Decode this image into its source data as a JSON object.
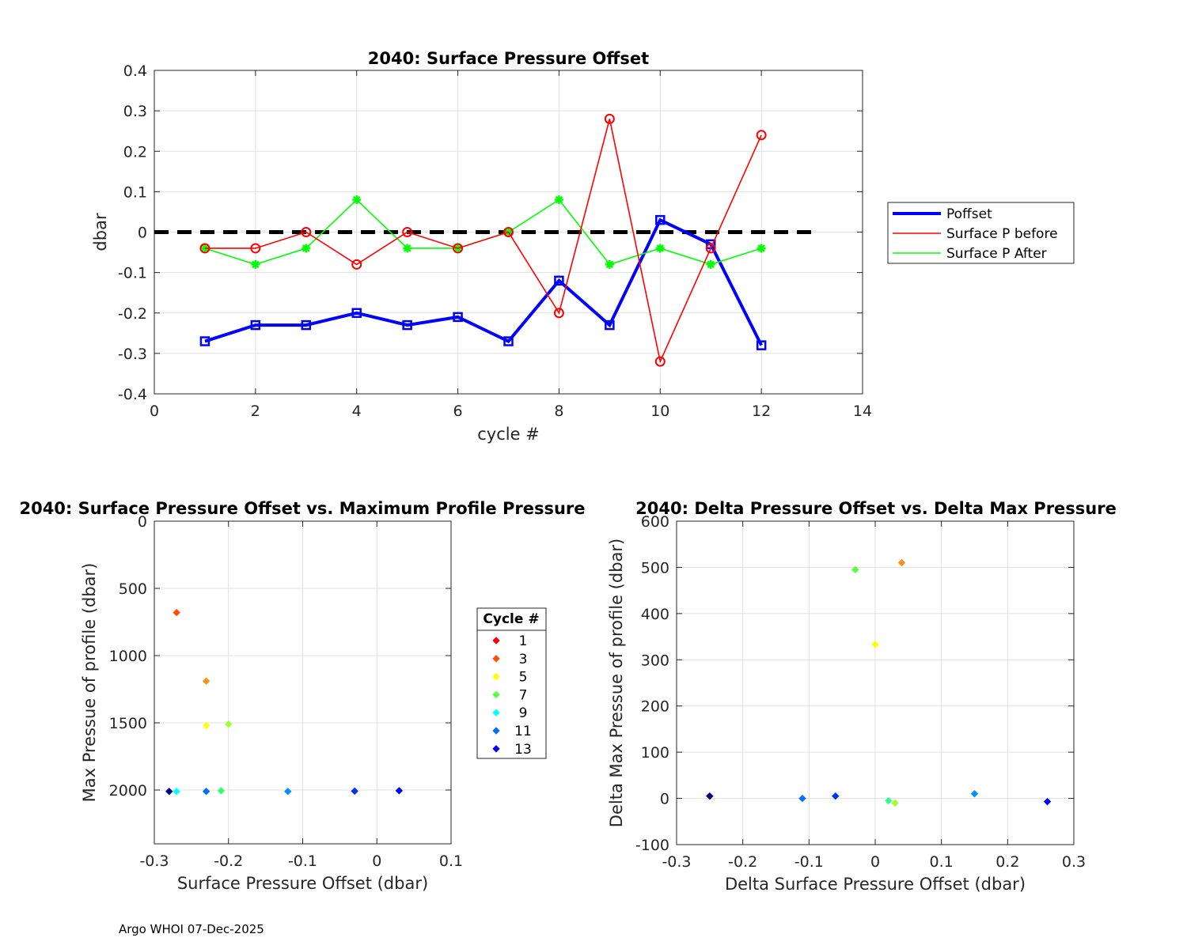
{
  "footer": "Argo WHOI 07-Dec-2025",
  "colors": {
    "poffset": "#0000ff",
    "before": "#ff0000",
    "after": "#00ff00",
    "grid": "#e0e0e0",
    "axis": "#262626",
    "zero_line": "#000000"
  },
  "chart_data": [
    {
      "id": "top",
      "type": "line",
      "title": "2040: Surface Pressure Offset",
      "xlabel": "cycle #",
      "ylabel": "dbar",
      "xlim": [
        0,
        14
      ],
      "ylim": [
        -0.4,
        0.4
      ],
      "xticks": [
        0,
        2,
        4,
        6,
        8,
        10,
        12,
        14
      ],
      "yticks": [
        -0.4,
        -0.3,
        -0.2,
        -0.1,
        0,
        0.1,
        0.2,
        0.3,
        0.4
      ],
      "xtick_labels": [
        "0",
        "2",
        "4",
        "6",
        "8",
        "10",
        "12",
        "14"
      ],
      "ytick_labels": [
        "-0.4",
        "-0.3",
        "-0.2",
        "-0.1",
        "0",
        "0.1",
        "0.2",
        "0.3",
        "0.4"
      ],
      "grid": true,
      "reference_line": {
        "y": 0,
        "x": [
          0,
          13
        ],
        "style": "dashed"
      },
      "legend_position": "outside-right",
      "series": [
        {
          "name": "Poffset",
          "marker": "square",
          "color": "#0000ff",
          "x": [
            1,
            2,
            3,
            4,
            5,
            6,
            7,
            8,
            9,
            10,
            11,
            12
          ],
          "y": [
            -0.27,
            -0.23,
            -0.23,
            -0.2,
            -0.23,
            -0.21,
            -0.27,
            -0.12,
            -0.23,
            0.03,
            -0.03,
            -0.28
          ]
        },
        {
          "name": "Surface P before",
          "marker": "circle",
          "color": "#ff0000",
          "x": [
            1,
            2,
            3,
            4,
            5,
            6,
            7,
            8,
            9,
            10,
            11,
            12
          ],
          "y": [
            -0.04,
            -0.04,
            0.0,
            -0.08,
            0.0,
            -0.04,
            0.0,
            -0.2,
            0.28,
            -0.32,
            -0.04,
            0.24
          ]
        },
        {
          "name": "Surface P After",
          "marker": "asterisk",
          "color": "#00ff00",
          "x": [
            1,
            2,
            3,
            4,
            5,
            6,
            7,
            8,
            9,
            10,
            11,
            12
          ],
          "y": [
            -0.04,
            -0.08,
            -0.04,
            0.08,
            -0.04,
            -0.04,
            0.0,
            0.08,
            -0.08,
            -0.04,
            -0.08,
            -0.04
          ]
        }
      ]
    },
    {
      "id": "bottom-left",
      "type": "scatter",
      "title": "2040: Surface Pressure Offset vs. Maximum Profile Pressure",
      "xlabel": "Surface Pressure Offset (dbar)",
      "ylabel": "Max Pressue of profile (dbar)",
      "xlim": [
        -0.3,
        0.1
      ],
      "ylim": [
        0,
        2400
      ],
      "y_reversed": true,
      "xticks": [
        -0.3,
        -0.2,
        -0.1,
        0,
        0.1
      ],
      "yticks": [
        0,
        500,
        1000,
        1500,
        2000
      ],
      "xtick_labels": [
        "-0.3",
        "-0.2",
        "-0.1",
        "0",
        "0.1"
      ],
      "ytick_labels": [
        "0",
        "500",
        "1000",
        "1500",
        "2000"
      ],
      "grid": true,
      "legend_title": "Cycle #",
      "legend_position": "outside-right",
      "legend_entries": [
        {
          "label": "1",
          "color": "#ff0000"
        },
        {
          "label": "3",
          "color": "#ff5000"
        },
        {
          "label": "5",
          "color": "#ffff00"
        },
        {
          "label": "7",
          "color": "#55ff40"
        },
        {
          "label": "9",
          "color": "#00ffff"
        },
        {
          "label": "11",
          "color": "#0070ff"
        },
        {
          "label": "13",
          "color": "#0000ff"
        }
      ],
      "points": [
        {
          "x": -0.27,
          "y": 680,
          "color": "#ff5000"
        },
        {
          "x": -0.23,
          "y": 1190,
          "color": "#ff9020"
        },
        {
          "x": -0.23,
          "y": 1520,
          "color": "#ffff00"
        },
        {
          "x": -0.2,
          "y": 1510,
          "color": "#a0ff30"
        },
        {
          "x": -0.21,
          "y": 2005,
          "color": "#30ff70"
        },
        {
          "x": -0.28,
          "y": 2010,
          "color": "#000080"
        },
        {
          "x": -0.27,
          "y": 2010,
          "color": "#00ffff"
        },
        {
          "x": -0.23,
          "y": 2010,
          "color": "#0070ff"
        },
        {
          "x": -0.12,
          "y": 2010,
          "color": "#0090ff"
        },
        {
          "x": -0.03,
          "y": 2008,
          "color": "#0030ff"
        },
        {
          "x": 0.03,
          "y": 2005,
          "color": "#0000ff"
        }
      ]
    },
    {
      "id": "bottom-right",
      "type": "scatter",
      "title": "2040: Delta Pressure Offset vs. Delta Max Pressure",
      "xlabel": "Delta Surface Pressure Offset (dbar)",
      "ylabel": "Delta Max Pressue of profile (dbar)",
      "xlim": [
        -0.3,
        0.3
      ],
      "ylim": [
        -100,
        600
      ],
      "xticks": [
        -0.3,
        -0.2,
        -0.1,
        0,
        0.1,
        0.2,
        0.3
      ],
      "yticks": [
        -100,
        0,
        100,
        200,
        300,
        400,
        500,
        600
      ],
      "xtick_labels": [
        "-0.3",
        "-0.2",
        "-0.1",
        "0",
        "0.1",
        "0.2",
        "0.3"
      ],
      "ytick_labels": [
        "-100",
        "0",
        "100",
        "200",
        "300",
        "400",
        "500",
        "600"
      ],
      "grid": true,
      "points": [
        {
          "x": -0.03,
          "y": 495,
          "color": "#55ff40"
        },
        {
          "x": 0.04,
          "y": 510,
          "color": "#ff9020"
        },
        {
          "x": 0.0,
          "y": 333,
          "color": "#ffff00"
        },
        {
          "x": -0.25,
          "y": 5,
          "color": "#000080"
        },
        {
          "x": -0.11,
          "y": 0,
          "color": "#0070ff"
        },
        {
          "x": -0.06,
          "y": 5,
          "color": "#0030ff"
        },
        {
          "x": 0.02,
          "y": -5,
          "color": "#30ff90"
        },
        {
          "x": 0.03,
          "y": -10,
          "color": "#a0ff30"
        },
        {
          "x": 0.15,
          "y": 10,
          "color": "#0090ff"
        },
        {
          "x": 0.26,
          "y": -7,
          "color": "#0000ff"
        }
      ]
    }
  ]
}
